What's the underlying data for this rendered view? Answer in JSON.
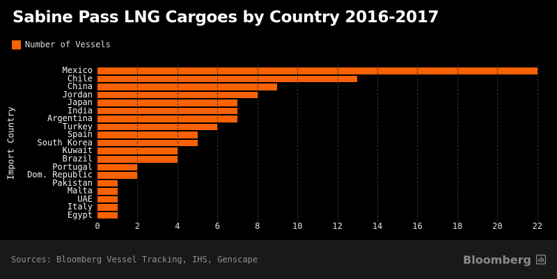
{
  "title": "Sabine Pass LNG Cargoes by Country 2016-2017",
  "legend": {
    "label": "Number of Vessels"
  },
  "chart_data": {
    "type": "bar",
    "orientation": "horizontal",
    "title": "Sabine Pass LNG Cargoes by Country 2016-2017",
    "series_name": "Number of Vessels",
    "categories": [
      "Mexico",
      "Chile",
      "China",
      "Jordan",
      "Japan",
      "India",
      "Argentina",
      "Turkey",
      "Spain",
      "South Korea",
      "Kuwait",
      "Brazil",
      "Portugal",
      "Dom. Republic",
      "Pakistan",
      "Malta",
      "UAE",
      "Italy",
      "Egypt"
    ],
    "values": [
      22,
      13,
      9,
      8,
      7,
      7,
      7,
      6,
      5,
      5,
      4,
      4,
      2,
      2,
      1,
      1,
      1,
      1,
      1
    ],
    "xlabel": "",
    "ylabel": "Import Country",
    "xlim": [
      0,
      22
    ],
    "xticks": [
      0,
      2,
      4,
      6,
      8,
      10,
      12,
      14,
      16,
      18,
      20,
      22
    ],
    "grid": true,
    "legend_position": "top-left"
  },
  "footer": {
    "sources": "Sources: Bloomberg Vessel Tracking, IHS, Genscape",
    "brand": "Bloomberg"
  },
  "colors": {
    "background": "#000000",
    "bar": "#fa6102",
    "title_text": "#ffffff",
    "axis_text": "#e0e0e0",
    "gridline": "#343434",
    "footer_background": "#191919",
    "footer_text": "#8f8f8f"
  }
}
